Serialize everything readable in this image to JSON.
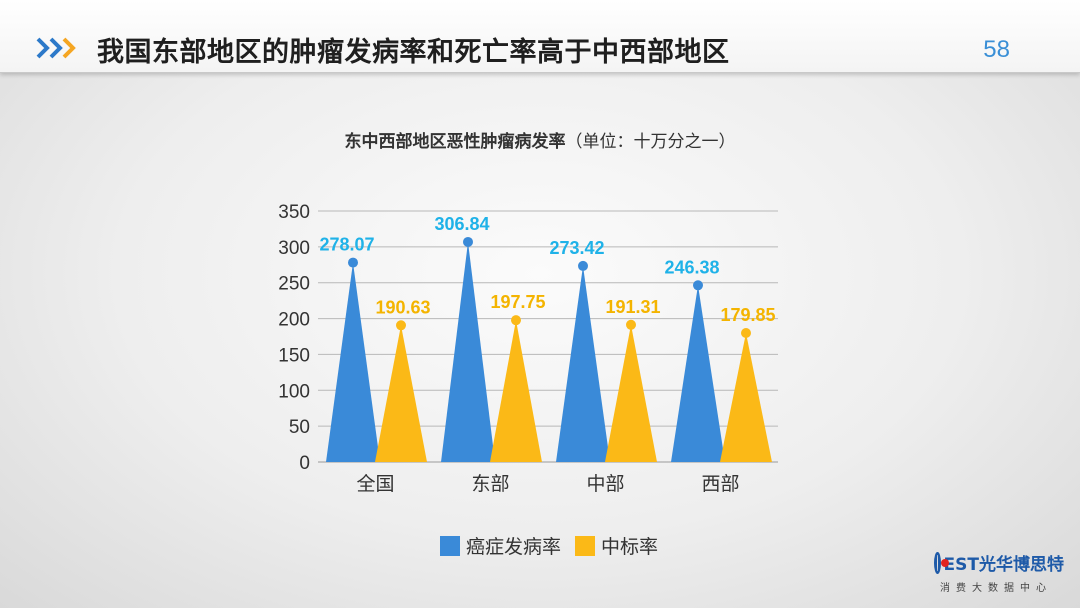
{
  "header": {
    "title": "我国东部地区的肿瘤发病率和死亡率高于中西部地区",
    "page_number": "58",
    "icon": "double-chevron-icon"
  },
  "chart_data": {
    "type": "bar",
    "title": "东中西部地区恶性肿瘤病发率",
    "subtitle": "（单位：十万分之一）",
    "categories": [
      "全国",
      "东部",
      "中部",
      "西部"
    ],
    "series": [
      {
        "name": "癌症发病率",
        "values": [
          278.07,
          306.84,
          273.42,
          246.38
        ],
        "color": "#3a8ad8"
      },
      {
        "name": "中标率",
        "values": [
          190.63,
          197.75,
          191.31,
          179.85
        ],
        "color": "#fbb917"
      }
    ],
    "value_label_colors": [
      "#1fb2e8",
      "#f4b400"
    ],
    "yticks": [
      0,
      50,
      100,
      150,
      200,
      250,
      300,
      350
    ],
    "ylim": [
      0,
      350
    ],
    "grid": true,
    "legend": "bottom"
  },
  "logo": {
    "brand": "EST光华博思特",
    "tagline": "消费大数据中心"
  }
}
